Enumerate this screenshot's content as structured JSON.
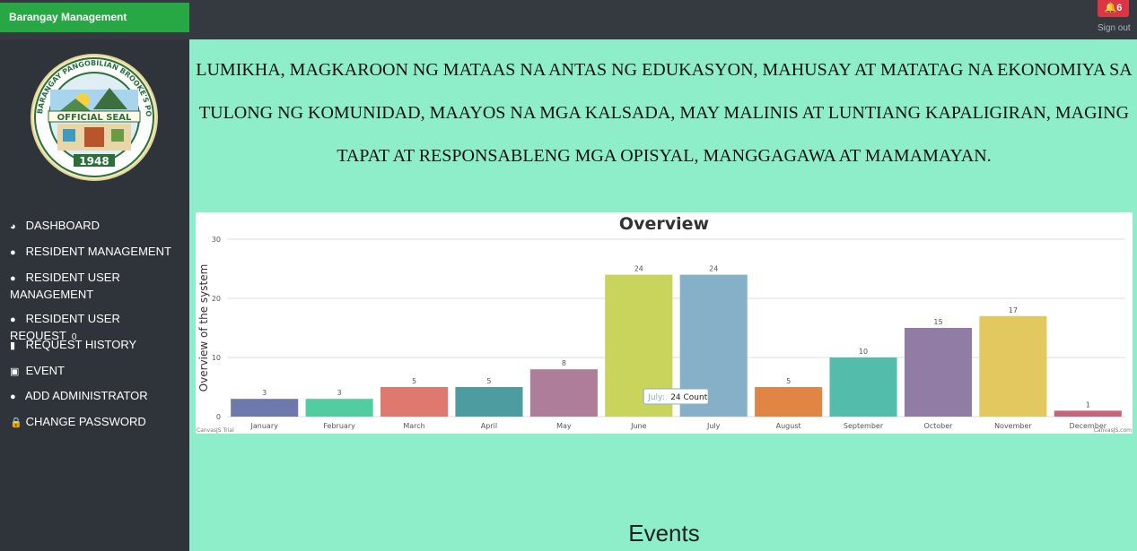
{
  "app": {
    "brand": "Barangay Management",
    "notification_count": "6",
    "sign_out": "Sign out"
  },
  "seal": {
    "ring_text": "BARANGAY PANGOBILIAN BROOKE'S POINT PALAWAN",
    "banner": "OFFICIAL SEAL",
    "year": "1948"
  },
  "sidebar": {
    "items": [
      {
        "label": "DASHBOARD",
        "icon": "dashboard-icon"
      },
      {
        "label": "RESIDENT MANAGEMENT",
        "icon": "users-icon"
      },
      {
        "label": "RESIDENT USER MANAGEMENT",
        "icon": "users-icon"
      },
      {
        "label": "RESIDENT USER REQUEST",
        "icon": "users-icon",
        "badge": "0"
      },
      {
        "label": "REQUEST HISTORY",
        "icon": "file-icon"
      },
      {
        "label": "EVENT",
        "icon": "calendar-icon"
      },
      {
        "label": "ADD ADMINISTRATOR",
        "icon": "users-icon"
      },
      {
        "label": "CHANGE PASSWORD",
        "icon": "lock-icon"
      }
    ]
  },
  "motto": "LUMIKHA, MAGKAROON NG MATAAS NA ANTAS NG EDUKASYON, MAHUSAY AT MATATAG NA EKONOMIYA SA TULONG NG KOMUNIDAD, MAAYOS NA MGA KALSADA, MAY MALINIS AT LUNTIANG KAPALIGIRAN, MAGING TAPAT AT RESPONSABLENG MGA OPISYAL, MANGGAGAWA AT MAMAMAYAN.",
  "chart_data": {
    "type": "bar",
    "title": "Overview",
    "ylabel": "Overview of the system",
    "xlabel": "",
    "categories": [
      "January",
      "February",
      "March",
      "April",
      "May",
      "June",
      "July",
      "August",
      "September",
      "October",
      "November",
      "December"
    ],
    "values": [
      3,
      3,
      5,
      5,
      8,
      24,
      24,
      5,
      10,
      15,
      17,
      1
    ],
    "ylim": [
      0,
      30
    ],
    "yticks": [
      0,
      10,
      20,
      30
    ],
    "colors": [
      "#6d78ad",
      "#51cda0",
      "#df7970",
      "#4c9ca0",
      "#ae7d99",
      "#c9d45c",
      "#85b0c8",
      "#e08543",
      "#54bcab",
      "#917ca6",
      "#e2c85f",
      "#c4657c"
    ],
    "tooltip": {
      "category": "July",
      "text": "24 Count"
    },
    "credits_left": "CanvasJS Trial",
    "credits_right": "CanvasJS.com"
  },
  "events_heading": "Events"
}
